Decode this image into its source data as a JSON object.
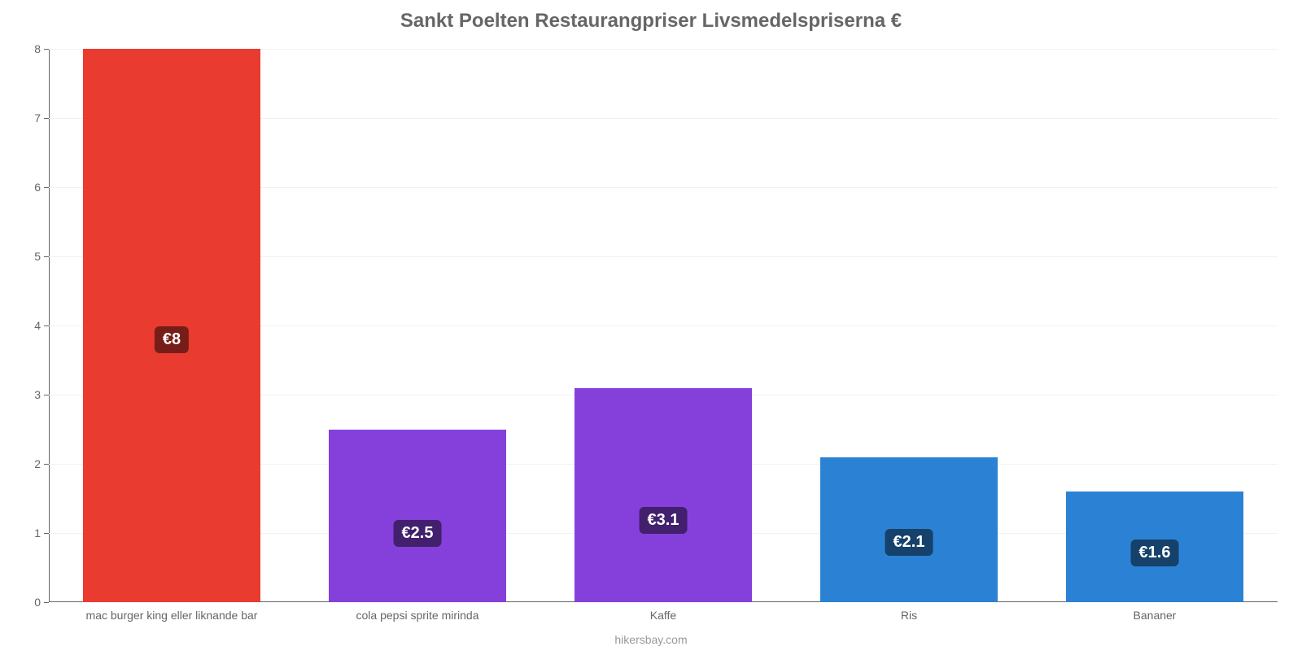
{
  "chart": {
    "type": "bar",
    "title": "Sankt Poelten Restaurangpriser Livsmedelspriserna €",
    "title_fontsize": 24,
    "title_color": "#666666",
    "footer": "hikersbay.com",
    "footer_color": "#999999",
    "background_color": "#ffffff",
    "grid_color": "#f2f2f2",
    "axis_color": "#666666",
    "tick_fontsize": 14,
    "tick_color": "#666666",
    "y_axis": {
      "min": 0,
      "max": 8,
      "ticks": [
        0,
        1,
        2,
        3,
        4,
        5,
        6,
        7,
        8
      ]
    },
    "categories": [
      "mac burger king eller liknande bar",
      "cola pepsi sprite mirinda",
      "Kaffe",
      "Ris",
      "Bananer"
    ],
    "values": [
      8,
      2.5,
      3.1,
      2.1,
      1.6
    ],
    "value_labels": [
      "€8",
      "€2.5",
      "€3.1",
      "€2.1",
      "€1.6"
    ],
    "bar_colors": [
      "#ea3b30",
      "#8540db",
      "#8540db",
      "#2b82d4",
      "#2b82d4"
    ],
    "label_bg_colors": [
      "#761d18",
      "#42206d",
      "#42206d",
      "#15416a",
      "#15416a"
    ],
    "bar_width_ratio": 0.72,
    "label_fontsize": 20
  }
}
